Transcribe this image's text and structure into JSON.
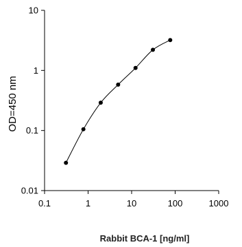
{
  "chart_data": {
    "type": "scatter",
    "xscale": "log",
    "yscale": "log",
    "xlim": [
      0.1,
      1000
    ],
    "ylim": [
      0.01,
      10
    ],
    "xlabel": "Rabbit BCA-1 [ng/ml]",
    "ylabel": "OD=450 nm",
    "xticks": [
      "0.1",
      "1",
      "10",
      "100",
      "1000"
    ],
    "yticks": [
      "10",
      "1",
      "0.1",
      "0.01"
    ],
    "grid": false,
    "line_connected": true,
    "colors": {
      "axis": "#000000",
      "line": "#000000",
      "marker": "#000000"
    },
    "series": [
      {
        "x": [
          0.31,
          0.78,
          1.95,
          4.9,
          12.3,
          30.8,
          77
        ],
        "y": [
          0.029,
          0.105,
          0.29,
          0.58,
          1.1,
          2.2,
          3.2
        ]
      }
    ]
  }
}
